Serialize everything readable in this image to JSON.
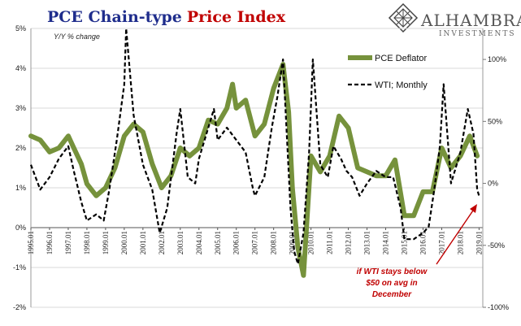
{
  "header": {
    "title_part1": "PCE Chain-type",
    "title_part2": "Price Index",
    "subtitle": "Y/Y % change"
  },
  "logo": {
    "name": "ALHAMBRA",
    "sub": "INVESTMENTS"
  },
  "annotation": {
    "lines": [
      "if WTI stays below",
      "$50 on avg in",
      "December"
    ]
  },
  "colors": {
    "pce": "#76923c",
    "wti": "#000000",
    "annotation": "#c00000",
    "title_blue": "#1f2d8c"
  },
  "chart_data": {
    "type": "line",
    "title": "PCE Chain-type Price Index",
    "subtitle": "Y/Y % change",
    "x_tick_labels": [
      "1995.01",
      "1996.01",
      "1997.01",
      "1998.01",
      "1999.01",
      "2000.01",
      "2001.01",
      "2002.01",
      "2003.01",
      "2004.01",
      "2005.01",
      "2006.01",
      "2007.01",
      "2008.01",
      "2009.01",
      "2010.01",
      "2011.01",
      "2012.01",
      "2013.01",
      "2014.01",
      "2015.01",
      "2016.01",
      "2017.01",
      "2018.01",
      "2019.01"
    ],
    "y_left": {
      "range": [
        -2,
        5
      ],
      "tick_labels": [
        "-2%",
        "-1%",
        "0%",
        "1%",
        "2%",
        "3%",
        "4%",
        "5%"
      ],
      "tick_values": [
        -2,
        -1,
        0,
        1,
        2,
        3,
        4,
        5
      ]
    },
    "y_right": {
      "range": [
        -100,
        125
      ],
      "tick_labels": [
        "-100%",
        "-50%",
        "0%",
        "50%",
        "100%"
      ],
      "tick_values": [
        -100,
        -50,
        0,
        50,
        100
      ]
    },
    "legend": {
      "placement": "top-right",
      "entries": [
        "PCE Deflator",
        "WTI; Monthly"
      ]
    },
    "series": [
      {
        "name": "PCE Deflator",
        "axis": "left",
        "style": "solid",
        "points": [
          [
            1995.0,
            2.3
          ],
          [
            1995.5,
            2.2
          ],
          [
            1996.0,
            1.9
          ],
          [
            1996.5,
            2.0
          ],
          [
            1997.0,
            2.3
          ],
          [
            1997.3,
            2.0
          ],
          [
            1997.7,
            1.6
          ],
          [
            1998.0,
            1.1
          ],
          [
            1998.5,
            0.8
          ],
          [
            1999.0,
            1.0
          ],
          [
            1999.5,
            1.5
          ],
          [
            2000.0,
            2.3
          ],
          [
            2000.5,
            2.6
          ],
          [
            2001.0,
            2.4
          ],
          [
            2001.5,
            1.6
          ],
          [
            2002.0,
            1.0
          ],
          [
            2002.5,
            1.3
          ],
          [
            2003.0,
            2.0
          ],
          [
            2003.5,
            1.8
          ],
          [
            2004.0,
            2.0
          ],
          [
            2004.5,
            2.7
          ],
          [
            2005.0,
            2.6
          ],
          [
            2005.5,
            3.0
          ],
          [
            2005.8,
            3.6
          ],
          [
            2006.0,
            3.0
          ],
          [
            2006.5,
            3.2
          ],
          [
            2007.0,
            2.3
          ],
          [
            2007.5,
            2.6
          ],
          [
            2008.0,
            3.5
          ],
          [
            2008.5,
            4.1
          ],
          [
            2008.8,
            2.9
          ],
          [
            2009.0,
            1.0
          ],
          [
            2009.3,
            -0.5
          ],
          [
            2009.6,
            -1.2
          ],
          [
            2010.0,
            1.8
          ],
          [
            2010.5,
            1.4
          ],
          [
            2011.0,
            1.8
          ],
          [
            2011.5,
            2.8
          ],
          [
            2012.0,
            2.5
          ],
          [
            2012.5,
            1.5
          ],
          [
            2013.0,
            1.4
          ],
          [
            2013.5,
            1.3
          ],
          [
            2014.0,
            1.3
          ],
          [
            2014.5,
            1.7
          ],
          [
            2015.0,
            0.3
          ],
          [
            2015.5,
            0.3
          ],
          [
            2016.0,
            0.9
          ],
          [
            2016.5,
            0.9
          ],
          [
            2017.0,
            2.0
          ],
          [
            2017.5,
            1.5
          ],
          [
            2018.0,
            1.8
          ],
          [
            2018.5,
            2.3
          ],
          [
            2018.9,
            1.8
          ]
        ]
      },
      {
        "name": "WTI; Monthly",
        "axis": "right",
        "style": "dashed",
        "points": [
          [
            1995.0,
            15
          ],
          [
            1995.5,
            -5
          ],
          [
            1996.0,
            5
          ],
          [
            1996.5,
            20
          ],
          [
            1997.0,
            30
          ],
          [
            1997.3,
            10
          ],
          [
            1997.7,
            -15
          ],
          [
            1998.0,
            -30
          ],
          [
            1998.5,
            -25
          ],
          [
            1998.9,
            -30
          ],
          [
            1999.2,
            -5
          ],
          [
            1999.6,
            35
          ],
          [
            2000.0,
            80
          ],
          [
            2000.1,
            125
          ],
          [
            2000.5,
            55
          ],
          [
            2001.0,
            15
          ],
          [
            2001.5,
            -5
          ],
          [
            2001.9,
            -40
          ],
          [
            2002.3,
            -20
          ],
          [
            2002.8,
            40
          ],
          [
            2003.0,
            60
          ],
          [
            2003.4,
            5
          ],
          [
            2003.8,
            0
          ],
          [
            2004.0,
            20
          ],
          [
            2004.5,
            45
          ],
          [
            2004.8,
            60
          ],
          [
            2005.0,
            35
          ],
          [
            2005.5,
            45
          ],
          [
            2006.0,
            35
          ],
          [
            2006.5,
            25
          ],
          [
            2006.9,
            -5
          ],
          [
            2007.0,
            -10
          ],
          [
            2007.5,
            5
          ],
          [
            2007.9,
            45
          ],
          [
            2008.2,
            70
          ],
          [
            2008.5,
            100
          ],
          [
            2008.9,
            -20
          ],
          [
            2009.1,
            -55
          ],
          [
            2009.3,
            -65
          ],
          [
            2009.6,
            -40
          ],
          [
            2009.9,
            25
          ],
          [
            2010.1,
            100
          ],
          [
            2010.5,
            15
          ],
          [
            2010.9,
            5
          ],
          [
            2011.2,
            30
          ],
          [
            2011.6,
            20
          ],
          [
            2011.9,
            10
          ],
          [
            2012.2,
            5
          ],
          [
            2012.6,
            -10
          ],
          [
            2013.0,
            0
          ],
          [
            2013.5,
            10
          ],
          [
            2014.0,
            5
          ],
          [
            2014.4,
            5
          ],
          [
            2014.8,
            -20
          ],
          [
            2015.0,
            -45
          ],
          [
            2015.5,
            -45
          ],
          [
            2016.0,
            -40
          ],
          [
            2016.3,
            -35
          ],
          [
            2016.6,
            -5
          ],
          [
            2016.9,
            30
          ],
          [
            2017.1,
            80
          ],
          [
            2017.5,
            0
          ],
          [
            2018.0,
            25
          ],
          [
            2018.4,
            60
          ],
          [
            2018.7,
            40
          ],
          [
            2018.9,
            -5
          ],
          [
            2019.0,
            -10
          ]
        ]
      }
    ]
  }
}
